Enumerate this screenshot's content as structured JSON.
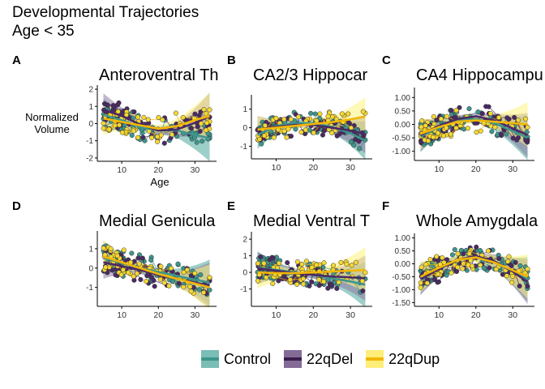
{
  "title": "Developmental Trajectories",
  "subtitle": "Age < 35",
  "colors": {
    "Control": "#3d968c",
    "22qDel": "#4b2a63",
    "22qDup": "#f5d832",
    "band_Control": "#4da89d",
    "band_22qDel": "#8f7aa3",
    "band_22qDup": "#fff27a"
  },
  "legend": {
    "items": [
      {
        "name": "Control"
      },
      {
        "name": "22qDel"
      },
      {
        "name": "22qDup"
      }
    ]
  },
  "chart_data": [
    {
      "type": "scatter",
      "panel": "A",
      "title": "Anteroventral Th",
      "ylabel": "Normalized\nVolume",
      "xlabel": "Age",
      "xlim": [
        4,
        35
      ],
      "ylim": [
        -2.05,
        2.05
      ],
      "xticks": [
        10,
        20,
        30
      ],
      "yticks": [
        -2,
        -1,
        0,
        1,
        2
      ],
      "series": [
        {
          "name": "Control",
          "fit": [
            [
              5,
              0.5
            ],
            [
              10,
              0.2
            ],
            [
              15,
              -0.2
            ],
            [
              20,
              -0.4
            ],
            [
              25,
              -0.4
            ],
            [
              30,
              -0.65
            ],
            [
              34,
              -0.85
            ]
          ]
        },
        {
          "name": "22qDel",
          "fit": [
            [
              5,
              0.8
            ],
            [
              10,
              0.45
            ],
            [
              15,
              -0.05
            ],
            [
              20,
              -0.4
            ],
            [
              25,
              -0.35
            ],
            [
              30,
              0.05
            ],
            [
              34,
              0.45
            ]
          ]
        },
        {
          "name": "22qDup",
          "fit": [
            [
              5,
              0.3
            ],
            [
              10,
              0.1
            ],
            [
              15,
              -0.1
            ],
            [
              20,
              -0.3
            ],
            [
              25,
              -0.15
            ],
            [
              30,
              0.2
            ],
            [
              34,
              0.45
            ]
          ]
        }
      ]
    },
    {
      "type": "scatter",
      "panel": "B",
      "title": "CA2/3 Hippocar",
      "ylabel": "",
      "xlabel": "",
      "xlim": [
        4,
        35
      ],
      "ylim": [
        -1.55,
        1.6
      ],
      "xticks": [
        10,
        20,
        30
      ],
      "yticks": [
        -1,
        0,
        1
      ],
      "series": [
        {
          "name": "Control",
          "fit": [
            [
              5,
              -0.4
            ],
            [
              10,
              0.1
            ],
            [
              15,
              0.25
            ],
            [
              20,
              0.25
            ],
            [
              25,
              0.05
            ],
            [
              30,
              -0.3
            ],
            [
              34,
              -0.7
            ]
          ]
        },
        {
          "name": "22qDel",
          "fit": [
            [
              5,
              -0.1
            ],
            [
              10,
              0.05
            ],
            [
              15,
              0.15
            ],
            [
              20,
              0.15
            ],
            [
              25,
              0.0
            ],
            [
              30,
              -0.15
            ],
            [
              34,
              -0.35
            ]
          ]
        },
        {
          "name": "22qDup",
          "fit": [
            [
              5,
              -0.1
            ],
            [
              10,
              0.0
            ],
            [
              15,
              0.1
            ],
            [
              20,
              0.2
            ],
            [
              25,
              0.3
            ],
            [
              30,
              0.45
            ],
            [
              34,
              0.6
            ]
          ]
        }
      ]
    },
    {
      "type": "scatter",
      "panel": "C",
      "title": "CA4 Hippocampu",
      "ylabel": "",
      "xlabel": "",
      "xlim": [
        4,
        35
      ],
      "ylim": [
        -1.25,
        1.25
      ],
      "xticks": [
        10,
        20,
        30
      ],
      "yticks": [
        -1.0,
        -0.5,
        0.0,
        0.5,
        1.0
      ],
      "series": [
        {
          "name": "Control",
          "fit": [
            [
              5,
              -0.45
            ],
            [
              10,
              -0.1
            ],
            [
              15,
              0.15
            ],
            [
              20,
              0.2
            ],
            [
              25,
              0.05
            ],
            [
              30,
              -0.25
            ],
            [
              34,
              -0.5
            ]
          ]
        },
        {
          "name": "22qDel",
          "fit": [
            [
              5,
              -0.4
            ],
            [
              10,
              -0.05
            ],
            [
              15,
              0.2
            ],
            [
              20,
              0.3
            ],
            [
              25,
              0.15
            ],
            [
              30,
              -0.15
            ],
            [
              34,
              -0.4
            ]
          ]
        },
        {
          "name": "22qDup",
          "fit": [
            [
              5,
              -0.35
            ],
            [
              10,
              -0.1
            ],
            [
              15,
              0.1
            ],
            [
              20,
              0.15
            ],
            [
              25,
              0.1
            ],
            [
              30,
              0.05
            ],
            [
              34,
              0.0
            ]
          ]
        }
      ]
    },
    {
      "type": "scatter",
      "panel": "D",
      "title": "Medial Genicula",
      "ylabel": "",
      "xlabel": "",
      "xlim": [
        4,
        35
      ],
      "ylim": [
        -1.85,
        1.75
      ],
      "xticks": [
        10,
        20,
        30
      ],
      "yticks": [
        -1,
        0,
        1
      ],
      "series": [
        {
          "name": "Control",
          "fit": [
            [
              5,
              0.55
            ],
            [
              10,
              0.25
            ],
            [
              15,
              0.0
            ],
            [
              20,
              -0.2
            ],
            [
              25,
              -0.4
            ],
            [
              30,
              -0.6
            ],
            [
              34,
              -0.75
            ]
          ]
        },
        {
          "name": "22qDel",
          "fit": [
            [
              5,
              0.3
            ],
            [
              10,
              0.1
            ],
            [
              15,
              -0.1
            ],
            [
              20,
              -0.35
            ],
            [
              25,
              -0.55
            ],
            [
              30,
              -0.75
            ],
            [
              34,
              -0.9
            ]
          ]
        },
        {
          "name": "22qDup",
          "fit": [
            [
              5,
              0.6
            ],
            [
              10,
              0.3
            ],
            [
              15,
              0.0
            ],
            [
              20,
              -0.3
            ],
            [
              25,
              -0.55
            ],
            [
              30,
              -0.8
            ],
            [
              34,
              -1.0
            ]
          ]
        }
      ]
    },
    {
      "type": "scatter",
      "panel": "E",
      "title": "Medial Ventral T",
      "ylabel": "",
      "xlabel": "",
      "xlim": [
        4,
        35
      ],
      "ylim": [
        -1.9,
        2.25
      ],
      "xticks": [
        10,
        20,
        30
      ],
      "yticks": [
        -1,
        0,
        1,
        2
      ],
      "series": [
        {
          "name": "Control",
          "fit": [
            [
              5,
              0.3
            ],
            [
              10,
              0.15
            ],
            [
              15,
              0.0
            ],
            [
              20,
              -0.15
            ],
            [
              25,
              -0.35
            ],
            [
              30,
              -0.55
            ],
            [
              34,
              -0.75
            ]
          ]
        },
        {
          "name": "22qDel",
          "fit": [
            [
              5,
              0.25
            ],
            [
              10,
              0.1
            ],
            [
              15,
              -0.05
            ],
            [
              20,
              -0.15
            ],
            [
              25,
              -0.25
            ],
            [
              30,
              -0.3
            ],
            [
              34,
              -0.35
            ]
          ]
        },
        {
          "name": "22qDup",
          "fit": [
            [
              5,
              0.0
            ],
            [
              10,
              -0.05
            ],
            [
              15,
              -0.05
            ],
            [
              20,
              0.0
            ],
            [
              25,
              0.05
            ],
            [
              30,
              0.1
            ],
            [
              34,
              0.15
            ]
          ]
        }
      ]
    },
    {
      "type": "scatter",
      "panel": "F",
      "title": "Whole Amygdala",
      "ylabel": "",
      "xlabel": "",
      "xlim": [
        4,
        35
      ],
      "ylim": [
        -1.55,
        1.05
      ],
      "xticks": [
        10,
        20,
        30
      ],
      "yticks": [
        -1.5,
        -1.0,
        -0.5,
        0.0,
        0.5,
        1.0
      ],
      "series": [
        {
          "name": "Control",
          "fit": [
            [
              5,
              -0.55
            ],
            [
              10,
              -0.15
            ],
            [
              15,
              0.15
            ],
            [
              20,
              0.25
            ],
            [
              25,
              0.05
            ],
            [
              30,
              -0.3
            ],
            [
              34,
              -0.6
            ]
          ]
        },
        {
          "name": "22qDel",
          "fit": [
            [
              5,
              -0.6
            ],
            [
              10,
              -0.2
            ],
            [
              15,
              0.15
            ],
            [
              20,
              0.3
            ],
            [
              25,
              0.1
            ],
            [
              30,
              -0.3
            ],
            [
              34,
              -0.7
            ]
          ]
        },
        {
          "name": "22qDup",
          "fit": [
            [
              5,
              -0.5
            ],
            [
              10,
              -0.15
            ],
            [
              15,
              0.15
            ],
            [
              20,
              0.25
            ],
            [
              25,
              0.05
            ],
            [
              30,
              -0.25
            ],
            [
              34,
              -0.5
            ]
          ]
        }
      ]
    }
  ]
}
